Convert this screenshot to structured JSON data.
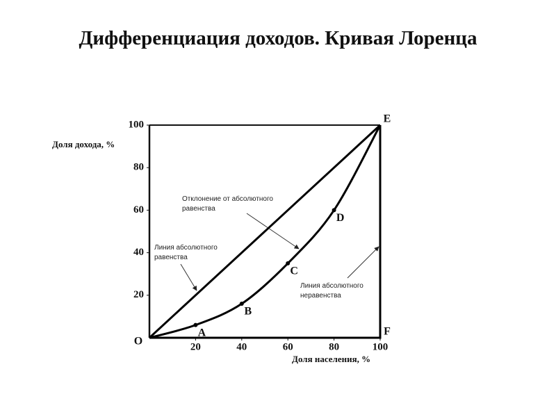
{
  "chart_data": {
    "type": "line",
    "title": "Дифференциация доходов. Кривая Лоренца",
    "x_label": "Доля населения, %",
    "y_label": "Доля дохода, %",
    "xlim": [
      0,
      100
    ],
    "ylim": [
      0,
      100
    ],
    "xticks": [
      20,
      40,
      60,
      80,
      100
    ],
    "yticks": [
      20,
      40,
      60,
      80,
      100
    ],
    "grid": false,
    "series": [
      {
        "color": "#000000",
        "x": [
          0,
          100
        ],
        "values": [
          0,
          100
        ]
      },
      {
        "color": "#000000",
        "x": [
          0,
          100,
          100
        ],
        "values": [
          0,
          0,
          100
        ],
        "point_labels": [
          null,
          "F",
          null
        ]
      },
      {
        "color": "#000000",
        "smooth": true,
        "markers": true,
        "x": [
          0,
          20,
          40,
          60,
          80,
          100
        ],
        "values": [
          0,
          6,
          16,
          35,
          60,
          100
        ],
        "point_labels": [
          "O",
          "A",
          "B",
          "C",
          "D",
          "E"
        ]
      }
    ],
    "annotations": [
      "Отклонение от абсолютного равенства",
      "Линия абсолютного равенства",
      "Линия абсолютного неравенства"
    ]
  }
}
